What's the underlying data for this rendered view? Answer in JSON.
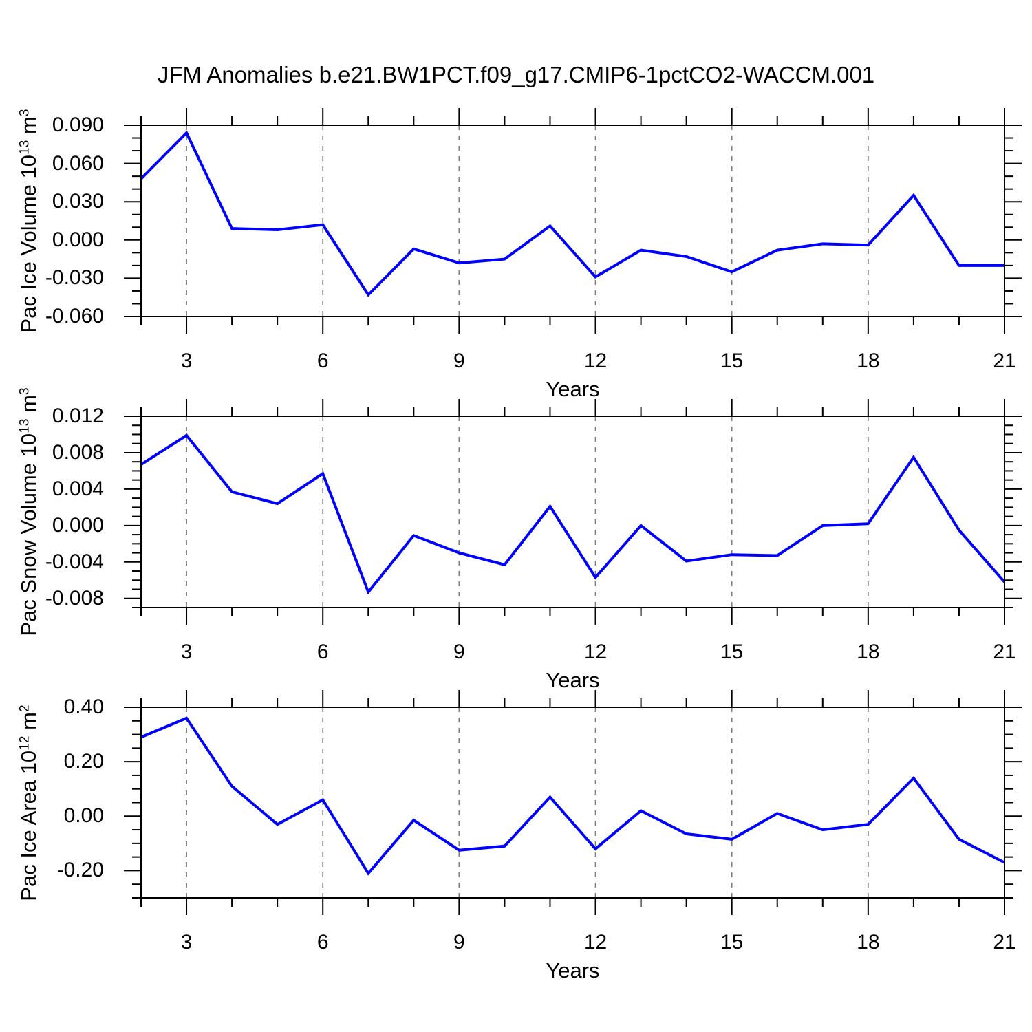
{
  "title": "JFM Anomalies b.e21.BW1PCT.f09_g17.CMIP6-1pctCO2-WACCM.001",
  "colors": {
    "line": "#0000ff",
    "grid": "#7d7d7d",
    "frame": "#000000",
    "text": "#000000",
    "background": "#ffffff"
  },
  "x_axis": {
    "label": "Years",
    "range": [
      2,
      21
    ],
    "major_ticks": [
      3,
      6,
      9,
      12,
      15,
      18,
      21
    ],
    "minor_tick_every": 1,
    "gridline_years": [
      3,
      6,
      9,
      12,
      15,
      18
    ]
  },
  "chart_data": [
    {
      "type": "line",
      "series_name": "Pac Ice Volume anomaly",
      "ylabel_text": "Pac Ice Volume 10^13 m^3",
      "ylabel_parts": [
        {
          "text": "Pac Ice Volume 10"
        },
        {
          "sup": "13"
        },
        {
          "text": " m"
        },
        {
          "sup": "3"
        }
      ],
      "xlabel": "Years",
      "ylim": [
        -0.06,
        0.09
      ],
      "ytick_major": [
        0.09,
        0.06,
        0.03,
        0.0,
        -0.03,
        -0.06
      ],
      "ytick_labels": [
        "0.090",
        "0.060",
        "0.030",
        "0.000",
        "-0.030",
        "-0.060"
      ],
      "ytick_minor_step": 0.01,
      "grid": "vertical-dashed",
      "legend": "none",
      "x": [
        2,
        3,
        4,
        5,
        6,
        7,
        8,
        9,
        10,
        11,
        12,
        13,
        14,
        15,
        16,
        17,
        18,
        19,
        20,
        21
      ],
      "values": [
        0.048,
        0.084,
        0.009,
        0.008,
        0.012,
        -0.043,
        -0.007,
        -0.018,
        -0.015,
        0.011,
        -0.029,
        -0.008,
        -0.013,
        -0.025,
        -0.008,
        -0.003,
        -0.004,
        0.035,
        -0.02,
        -0.02
      ]
    },
    {
      "type": "line",
      "series_name": "Pac Snow Volume anomaly",
      "ylabel_text": "Pac Snow Volume 10^13 m^3",
      "ylabel_parts": [
        {
          "text": "Pac Snow Volume 10"
        },
        {
          "sup": "13"
        },
        {
          "text": " m"
        },
        {
          "sup": "3"
        }
      ],
      "xlabel": "Years",
      "ylim": [
        -0.009,
        0.012
      ],
      "ytick_major": [
        0.012,
        0.008,
        0.004,
        0.0,
        -0.004,
        -0.008
      ],
      "ytick_labels": [
        "0.012",
        "0.008",
        "0.004",
        "0.000",
        "-0.004",
        "-0.008"
      ],
      "ytick_minor_step": 0.001,
      "grid": "vertical-dashed",
      "legend": "none",
      "x": [
        2,
        3,
        4,
        5,
        6,
        7,
        8,
        9,
        10,
        11,
        12,
        13,
        14,
        15,
        16,
        17,
        18,
        19,
        20,
        21
      ],
      "values": [
        0.0067,
        0.0099,
        0.0037,
        0.0024,
        0.0057,
        -0.0073,
        -0.0011,
        -0.003,
        -0.0043,
        0.0021,
        -0.0057,
        0.0,
        -0.0039,
        -0.0032,
        -0.0033,
        0.0,
        0.0002,
        0.0075,
        -0.0005,
        -0.0062
      ]
    },
    {
      "type": "line",
      "series_name": "Pac Ice Area anomaly",
      "ylabel_text": "Pac Ice Area 10^12 m^2",
      "ylabel_parts": [
        {
          "text": "Pac Ice Area 10"
        },
        {
          "sup": "12"
        },
        {
          "text": " m"
        },
        {
          "sup": "2"
        }
      ],
      "xlabel": "Years",
      "ylim": [
        -0.3,
        0.4
      ],
      "ytick_major": [
        0.4,
        0.2,
        0.0,
        -0.2
      ],
      "ytick_labels": [
        "0.40",
        "0.20",
        "0.00",
        "-0.20"
      ],
      "ytick_minor_step": 0.05,
      "grid": "vertical-dashed",
      "legend": "none",
      "x": [
        2,
        3,
        4,
        5,
        6,
        7,
        8,
        9,
        10,
        11,
        12,
        13,
        14,
        15,
        16,
        17,
        18,
        19,
        20,
        21
      ],
      "values": [
        0.29,
        0.36,
        0.11,
        -0.03,
        0.06,
        -0.21,
        -0.015,
        -0.125,
        -0.11,
        0.07,
        -0.12,
        0.02,
        -0.065,
        -0.085,
        0.01,
        -0.05,
        -0.03,
        0.14,
        -0.085,
        -0.17
      ]
    }
  ]
}
